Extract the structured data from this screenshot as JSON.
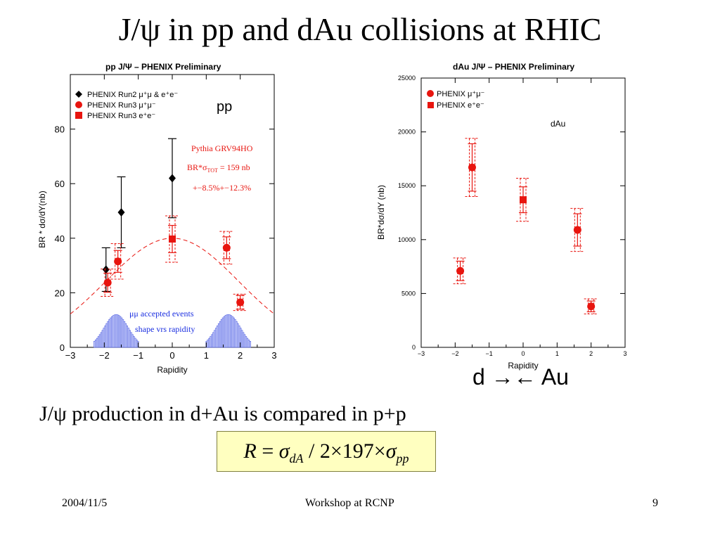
{
  "slide": {
    "title": "J/ψ in pp and dAu collisions at RHIC",
    "caption": "J/ψ production in d+Au is compared in p+p",
    "formula": {
      "R": "R",
      "eq": " = ",
      "sigma1": "σ",
      "sub1": "dA",
      "mid": " / 2×197×",
      "sigma2": "σ",
      "sub2": "pp"
    },
    "direction_label": "d →← Au",
    "footer": {
      "date": "2004/11/5",
      "event": "Workshop at RCNP",
      "page": "9"
    }
  },
  "chart_data": [
    {
      "type": "scatter",
      "title": "pp  J/Ψ – PHENIX Preliminary",
      "xlabel": "Rapidity",
      "ylabel": "BR * dσ/dY(nb)",
      "xlim": [
        -3,
        3
      ],
      "ylim": [
        0,
        100
      ],
      "x_ticks": [
        "−3",
        "−2",
        "−1",
        "0",
        "1",
        "2",
        "3"
      ],
      "y_ticks": [
        "0",
        "20",
        "40",
        "60",
        "80"
      ],
      "annotation": "pp",
      "legend_placement": "top-left",
      "series": [
        {
          "name": "PHENIX Run2 μ⁺μ & e⁺e⁻",
          "marker": "diamond",
          "color": "#000000",
          "points": [
            {
              "x": -1.95,
              "y": 28.5,
              "err_lo": 8,
              "err_hi": 8
            },
            {
              "x": -1.5,
              "y": 49.5,
              "err_lo": 13,
              "err_hi": 13
            },
            {
              "x": 0.0,
              "y": 62,
              "err_lo": 14.5,
              "err_hi": 14.5
            }
          ]
        },
        {
          "name": "PHENIX Run3 μ⁺μ⁻",
          "marker": "circle",
          "color": "#e8150f",
          "points": [
            {
              "x": -1.9,
              "y": 23.7,
              "err_lo": 3.5,
              "err_hi": 3.5,
              "sys_lo": 5,
              "sys_hi": 5
            },
            {
              "x": -1.6,
              "y": 31.5,
              "err_lo": 4,
              "err_hi": 4,
              "sys_lo": 6.5,
              "sys_hi": 6.5
            },
            {
              "x": 1.6,
              "y": 36.5,
              "err_lo": 4,
              "err_hi": 4,
              "sys_lo": 6,
              "sys_hi": 6
            },
            {
              "x": 2.0,
              "y": 16.5,
              "err_lo": 2.5,
              "err_hi": 2.5,
              "sys_lo": 3,
              "sys_hi": 3
            }
          ]
        },
        {
          "name": "PHENIX Run3 e⁺e⁻",
          "marker": "square",
          "color": "#e8150f",
          "points": [
            {
              "x": 0.0,
              "y": 39.7,
              "err_lo": 5,
              "err_hi": 5,
              "sys_lo": 8.5,
              "sys_hi": 8.5
            }
          ]
        }
      ],
      "curve": {
        "label": "Pythia GRV94HO",
        "label2": "BR*σ",
        "label2_sub": "TOT",
        "label2_tail": " = 159 nb",
        "label3": "+−8.5%+−12.3%",
        "peak": 40,
        "sigma": 1.95,
        "color": "#e8150f"
      },
      "accepted_events": {
        "label1": "μμ accepted events",
        "label2": "shape vrs rapidity",
        "color": "#4a5ae0",
        "peak": 12,
        "centers": [
          -1.65,
          1.65
        ],
        "width": 0.35
      }
    },
    {
      "type": "scatter",
      "title": "dAu  J/Ψ – PHENIX Preliminary",
      "xlabel": "Rapidity",
      "ylabel": "BR*dσ/dY (nb)",
      "xlim": [
        -3,
        3
      ],
      "ylim": [
        0,
        25000
      ],
      "x_ticks": [
        "−3",
        "−2",
        "−1",
        "0",
        "1",
        "2",
        "3"
      ],
      "y_ticks": [
        "0",
        "5000",
        "10000",
        "15000",
        "20000",
        "25000"
      ],
      "annotation": "dAu",
      "legend_placement": "top-left",
      "series": [
        {
          "name": "PHENIX μ⁺μ⁻",
          "marker": "circle",
          "color": "#e8150f",
          "points": [
            {
              "x": -1.85,
              "y": 7100,
              "err_lo": 900,
              "err_hi": 900,
              "sys_lo": 1200,
              "sys_hi": 1200
            },
            {
              "x": -1.5,
              "y": 16700,
              "err_lo": 2200,
              "err_hi": 2200,
              "sys_lo": 2700,
              "sys_hi": 2700
            },
            {
              "x": 1.6,
              "y": 10900,
              "err_lo": 1500,
              "err_hi": 1500,
              "sys_lo": 2000,
              "sys_hi": 2000
            },
            {
              "x": 2.0,
              "y": 3800,
              "err_lo": 500,
              "err_hi": 500,
              "sys_lo": 700,
              "sys_hi": 700
            }
          ]
        },
        {
          "name": "PHENIX e⁺e⁻",
          "marker": "square",
          "color": "#e8150f",
          "points": [
            {
              "x": 0.0,
              "y": 13700,
              "err_lo": 1200,
              "err_hi": 1200,
              "sys_lo": 2000,
              "sys_hi": 2000
            }
          ]
        }
      ]
    }
  ]
}
